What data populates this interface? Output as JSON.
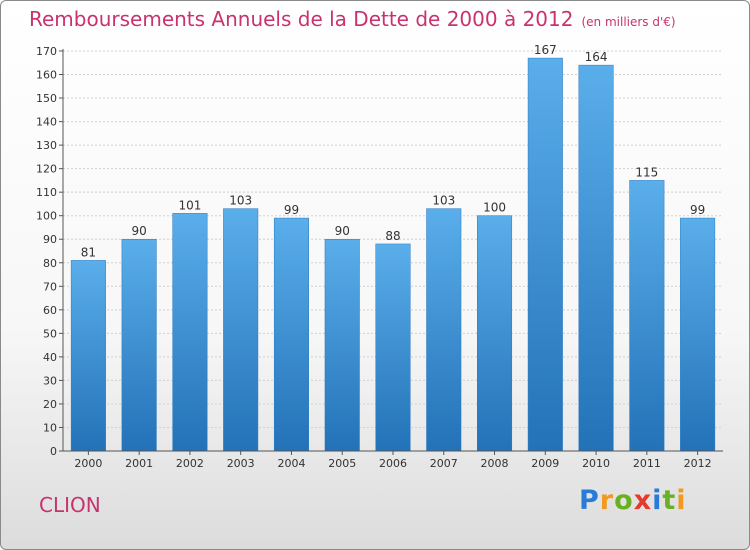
{
  "title": "Remboursements Annuels de la Dette de 2000 à 2012",
  "unit_note": "(en milliers d'€)",
  "town": "CLION",
  "logo": "Proxiti",
  "chart_data": {
    "type": "bar",
    "title": "Remboursements Annuels de la Dette de 2000 à 2012",
    "subtitle": "(en milliers d'€)",
    "xlabel": "",
    "ylabel": "",
    "categories": [
      "2000",
      "2001",
      "2002",
      "2003",
      "2004",
      "2005",
      "2006",
      "2007",
      "2008",
      "2009",
      "2010",
      "2011",
      "2012"
    ],
    "values": [
      81,
      90,
      101,
      103,
      99,
      90,
      88,
      103,
      100,
      167,
      164,
      115,
      99
    ],
    "ylim": [
      0,
      170
    ],
    "yticks": [
      0,
      10,
      20,
      30,
      40,
      50,
      60,
      70,
      80,
      90,
      100,
      110,
      120,
      130,
      140,
      150,
      160,
      170
    ],
    "grid": true,
    "bar_color": "#3b8fd8"
  }
}
